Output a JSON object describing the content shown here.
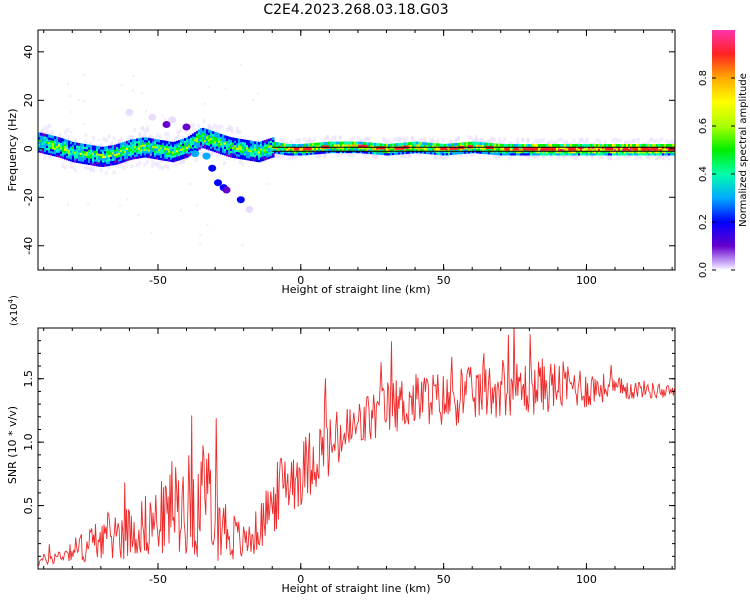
{
  "figure": {
    "title": "C2E4.2023.268.03.18.G03"
  },
  "chart_data": [
    {
      "type": "heatmap",
      "title": "C2E4.2023.268.03.18.G03",
      "xlabel": "Height of straight line (km)",
      "ylabel": "Frequency (Hz)",
      "xlim": [
        -92,
        131
      ],
      "ylim": [
        -50,
        49
      ],
      "xticks": [
        -50,
        0,
        50,
        100
      ],
      "xtick_labels": [
        "-50",
        "0",
        "50",
        "100"
      ],
      "yticks": [
        -40,
        -20,
        0,
        20,
        40
      ],
      "ytick_labels": [
        "-40",
        "-20",
        "0",
        "20",
        "40"
      ],
      "colorbar": {
        "label": "Normalized spectral amplitude",
        "range": [
          0,
          1
        ],
        "ticks": [
          0.0,
          0.2,
          0.4,
          0.6,
          0.8
        ],
        "tick_labels": [
          "0.0",
          "0.2",
          "0.4",
          "0.6",
          "0.8"
        ]
      },
      "ridge": {
        "x": [
          -92,
          -85,
          -80,
          -75,
          -70,
          -65,
          -60,
          -55,
          -50,
          -45,
          -40,
          -35,
          -30,
          -25,
          -20,
          -15,
          -10,
          -5,
          0,
          10,
          20,
          30,
          40,
          50,
          60,
          70,
          80,
          90,
          100,
          110,
          120,
          131
        ],
        "y": [
          3,
          1,
          -1,
          -2,
          -3,
          -2,
          0,
          1,
          0,
          -1,
          1,
          5,
          3,
          1,
          0,
          -1,
          1,
          0,
          0,
          1,
          1,
          0,
          1,
          0,
          1,
          0,
          0,
          0,
          0,
          0,
          0,
          0
        ]
      },
      "fit_line": {
        "y": 0,
        "x_start": -10,
        "x_end": 131
      }
    },
    {
      "type": "line",
      "xlabel": "Height of straight line (km)",
      "ylabel": "SNR (10 * v/v)",
      "y_multiplier": "(x10^4)",
      "xlim": [
        -92,
        131
      ],
      "ylim": [
        0,
        1.9
      ],
      "xticks": [
        -50,
        0,
        50,
        100
      ],
      "xtick_labels": [
        "-50",
        "0",
        "50",
        "100"
      ],
      "yticks": [
        0.5,
        1.0,
        1.5
      ],
      "ytick_labels": [
        "0.5",
        "1.0",
        "1.5"
      ],
      "series": [
        {
          "color": "#ee2a2a",
          "x": [
            -92,
            -85,
            -80,
            -75,
            -70,
            -65,
            -60,
            -55,
            -50,
            -45,
            -40,
            -35,
            -30,
            -25,
            -20,
            -15,
            -10,
            -5,
            0,
            5,
            10,
            15,
            20,
            25,
            30,
            35,
            40,
            45,
            50,
            55,
            60,
            65,
            70,
            75,
            80,
            85,
            90,
            95,
            100,
            105,
            110,
            115,
            120,
            125,
            131
          ],
          "values": [
            0.06,
            0.1,
            0.15,
            0.18,
            0.25,
            0.27,
            0.3,
            0.34,
            0.38,
            0.46,
            0.52,
            0.5,
            0.44,
            0.28,
            0.2,
            0.3,
            0.5,
            0.72,
            0.75,
            0.9,
            0.95,
            1.05,
            1.12,
            1.2,
            1.27,
            1.3,
            1.33,
            1.35,
            1.33,
            1.35,
            1.38,
            1.4,
            1.42,
            1.43,
            1.42,
            1.45,
            1.44,
            1.45,
            1.42,
            1.43,
            1.42,
            1.41,
            1.42,
            1.4,
            1.4
          ],
          "noise_amplitude": [
            0.04,
            0.06,
            0.09,
            0.14,
            0.17,
            0.2,
            0.22,
            0.24,
            0.28,
            0.34,
            0.4,
            0.42,
            0.38,
            0.22,
            0.15,
            0.18,
            0.25,
            0.3,
            0.26,
            0.28,
            0.26,
            0.24,
            0.22,
            0.22,
            0.22,
            0.22,
            0.22,
            0.22,
            0.22,
            0.22,
            0.22,
            0.22,
            0.22,
            0.22,
            0.22,
            0.22,
            0.2,
            0.18,
            0.16,
            0.12,
            0.1,
            0.08,
            0.07,
            0.06,
            0.05
          ]
        }
      ]
    }
  ]
}
